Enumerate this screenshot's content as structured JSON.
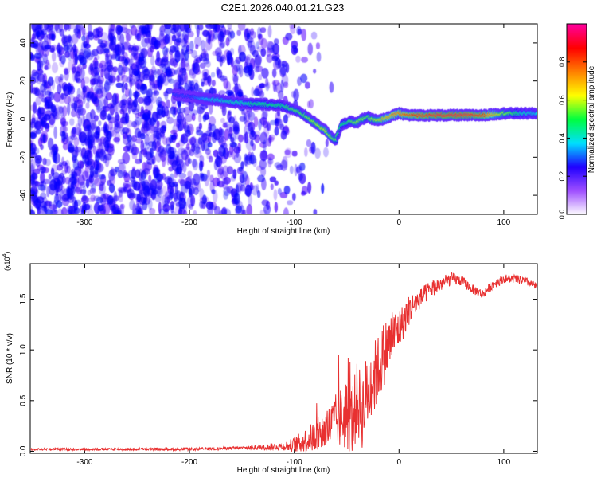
{
  "title": "C2E1.2026.040.01.21.G23",
  "chart_data": [
    {
      "type": "heatmap",
      "name": "spectrogram",
      "xlabel": "Height of straight line (km)",
      "ylabel": "Frequency (Hz)",
      "xlim": [
        -352,
        132
      ],
      "ylim": [
        -50,
        50
      ],
      "xticks": [
        -300,
        -200,
        -100,
        0,
        100
      ],
      "xtick_labels": [
        "-300",
        "-200",
        "-100",
        "0",
        "100"
      ],
      "yticks": [
        -40,
        -20,
        0,
        20,
        40
      ],
      "ytick_labels": [
        "-40",
        "-20",
        "0",
        "20",
        "40"
      ],
      "colorbar": {
        "label": "Normalized spectral amplitude",
        "range": [
          0,
          1
        ],
        "ticks": [
          0.0,
          0.2,
          0.4,
          0.6,
          0.8
        ],
        "tick_labels": [
          "0.0",
          "0.2",
          "0.4",
          "0.6",
          "0.8"
        ],
        "colors": [
          "#ffffff",
          "#a050ff",
          "#2000ff",
          "#00e0ff",
          "#00ff40",
          "#ffff00",
          "#ff8000",
          "#ff0000",
          "#ff00a0"
        ]
      },
      "ridge": {
        "x": [
          -215,
          -200,
          -190,
          -180,
          -170,
          -160,
          -150,
          -140,
          -130,
          -120,
          -110,
          -100,
          -95,
          -90,
          -85,
          -80,
          -75,
          -70,
          -65,
          -60,
          -58,
          -55,
          -50,
          -45,
          -40,
          -35,
          -30,
          -25,
          -20,
          -15,
          -10,
          -5,
          0,
          10,
          20,
          40,
          60,
          80,
          100,
          120,
          132
        ],
        "y": [
          13,
          12,
          11,
          10.5,
          10,
          9,
          8.5,
          8,
          7.8,
          7.5,
          7,
          5,
          3.5,
          2,
          0,
          -2,
          -4,
          -6,
          -9,
          -11,
          -8,
          -3,
          -2,
          -1,
          -2,
          0,
          1,
          0,
          -1,
          0,
          1,
          2,
          3,
          2,
          2,
          2,
          2,
          2,
          3,
          3,
          3
        ],
        "amplitude": [
          0.3,
          0.3,
          0.35,
          0.4,
          0.42,
          0.45,
          0.45,
          0.5,
          0.5,
          0.5,
          0.5,
          0.55,
          0.55,
          0.55,
          0.6,
          0.6,
          0.65,
          0.65,
          0.6,
          0.55,
          0.55,
          0.5,
          0.5,
          0.55,
          0.6,
          0.6,
          0.55,
          0.6,
          0.65,
          0.7,
          0.75,
          0.8,
          0.8,
          0.85,
          0.9,
          0.95,
          0.95,
          0.9,
          0.6,
          0.45,
          0.4
        ]
      },
      "noise": {
        "x_range": [
          -352,
          -100
        ],
        "level": 0.15
      }
    },
    {
      "type": "line",
      "name": "snr",
      "xlabel": "Height of straight line (km)",
      "ylabel": "SNR (10 * v/v)",
      "yscale_label": "(x10",
      "yscale_exponent": "4",
      "yscale_suffix": ")",
      "xlim": [
        -352,
        132
      ],
      "ylim": [
        -0.02,
        1.85
      ],
      "xticks": [
        -300,
        -200,
        -100,
        0,
        100
      ],
      "xtick_labels": [
        "-300",
        "-200",
        "-100",
        "0",
        "100"
      ],
      "yticks": [
        0.0,
        0.5,
        1.0,
        1.5
      ],
      "ytick_labels": [
        "0.0",
        "0.5",
        "1.0",
        "1.5"
      ],
      "color": "#e83030",
      "envelope": {
        "x": [
          -352,
          -300,
          -200,
          -160,
          -130,
          -110,
          -100,
          -90,
          -80,
          -70,
          -60,
          -50,
          -45,
          -40,
          -35,
          -30,
          -25,
          -20,
          -15,
          -10,
          -5,
          0,
          5,
          10,
          20,
          30,
          40,
          50,
          60,
          70,
          80,
          90,
          100,
          110,
          120,
          132
        ],
        "y": [
          0.02,
          0.02,
          0.02,
          0.03,
          0.04,
          0.05,
          0.06,
          0.1,
          0.15,
          0.2,
          0.3,
          0.35,
          0.3,
          0.5,
          0.4,
          0.6,
          0.7,
          0.8,
          0.95,
          1.05,
          1.15,
          1.2,
          1.3,
          1.4,
          1.5,
          1.6,
          1.65,
          1.7,
          1.68,
          1.6,
          1.55,
          1.65,
          1.7,
          1.7,
          1.68,
          1.62
        ]
      },
      "noise_amplitude": {
        "x": [
          -352,
          -150,
          -110,
          -90,
          -70,
          -50,
          -30,
          -10,
          0,
          20,
          60,
          132
        ],
        "y": [
          0.01,
          0.015,
          0.04,
          0.12,
          0.2,
          0.35,
          0.4,
          0.3,
          0.2,
          0.1,
          0.05,
          0.04
        ]
      }
    }
  ]
}
